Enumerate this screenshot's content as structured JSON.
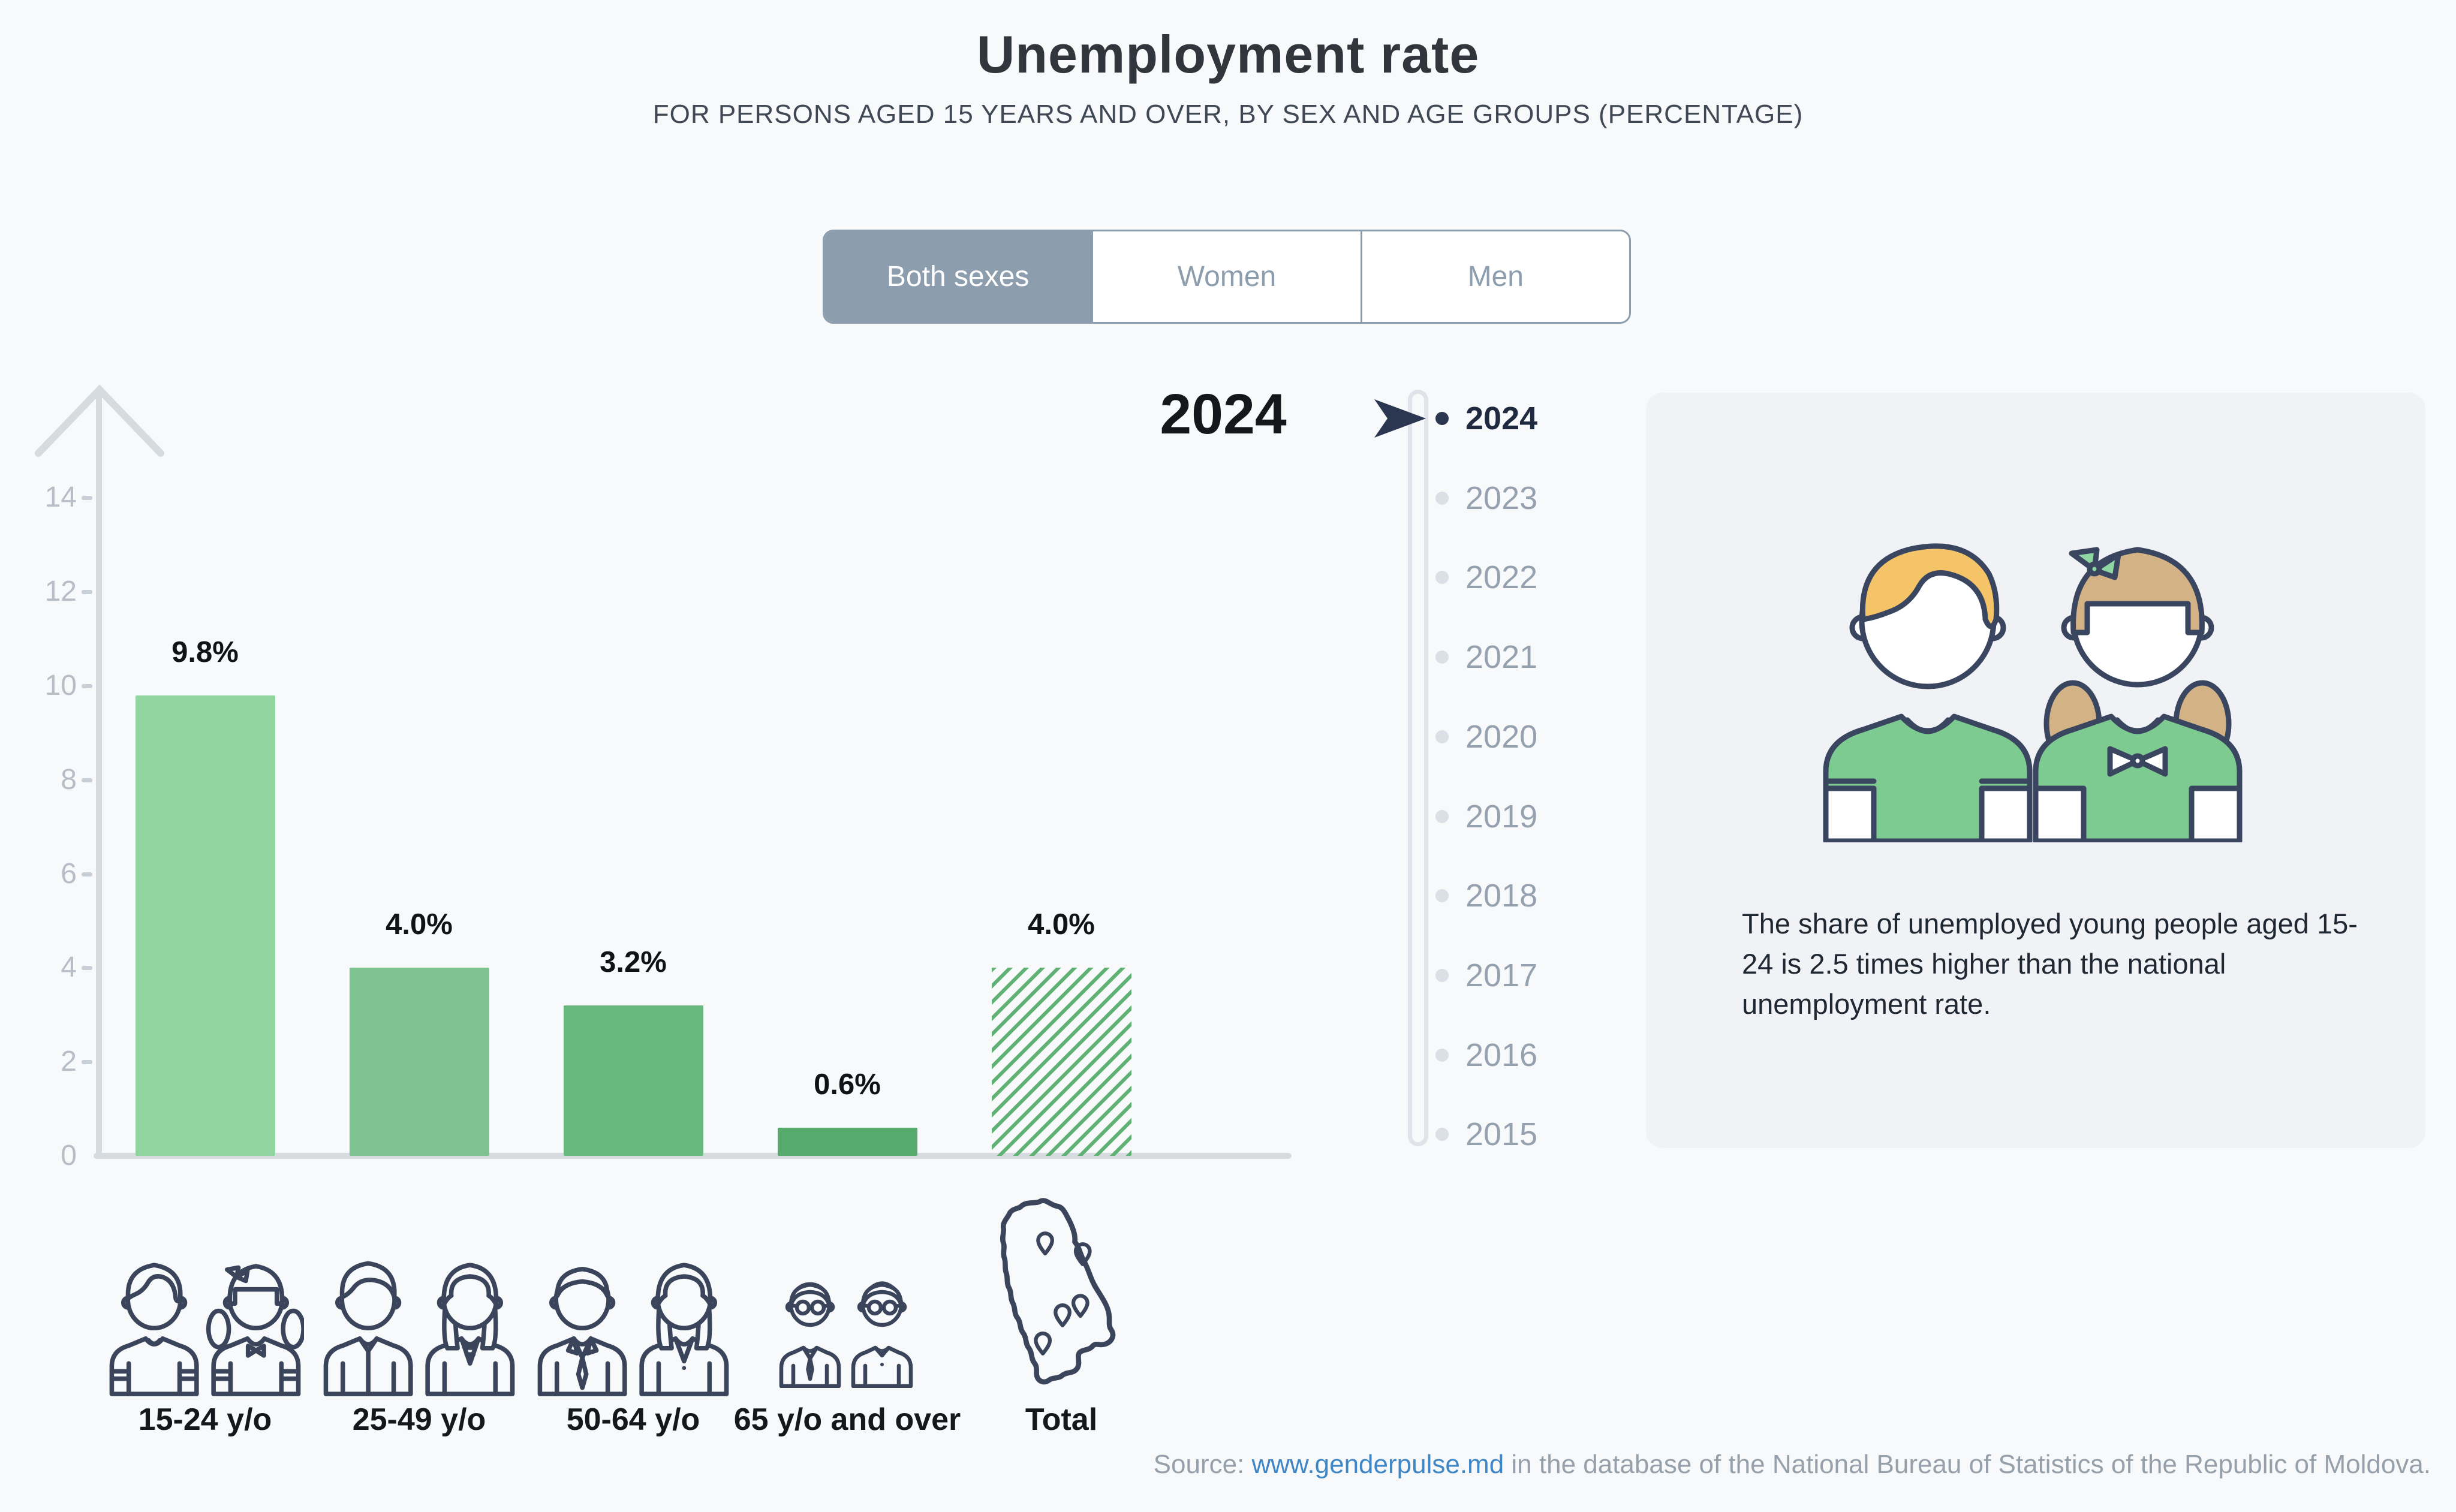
{
  "header": {
    "title": "Unemployment rate",
    "subtitle": "FOR PERSONS AGED 15 YEARS AND OVER, BY SEX AND AGE GROUPS (PERCENTAGE)"
  },
  "tabs": [
    {
      "label": "Both sexes",
      "selected": true
    },
    {
      "label": "Women",
      "selected": false
    },
    {
      "label": "Men",
      "selected": false
    }
  ],
  "chart_data": {
    "type": "bar",
    "year_label": "2024",
    "categories": [
      "15-24 y/o",
      "25-49 y/o",
      "50-64 y/o",
      "65 y/o and over",
      "Total"
    ],
    "values": [
      9.8,
      4.0,
      3.2,
      0.6,
      4.0
    ],
    "value_labels": [
      "9.8%",
      "4.0%",
      "3.2%",
      "0.6%",
      "4.0%"
    ],
    "unit": "percent",
    "ylim": [
      0,
      14
    ],
    "yticks": [
      0,
      2,
      4,
      6,
      8,
      10,
      12,
      14
    ],
    "grid": false,
    "bar_colors": [
      "#90d5a0",
      "#7dc290",
      "#69b97f",
      "#57ab6d",
      "#5fb274"
    ],
    "hatched": [
      false,
      false,
      false,
      false,
      true
    ]
  },
  "timeline": {
    "years": [
      "2024",
      "2023",
      "2022",
      "2021",
      "2020",
      "2019",
      "2018",
      "2017",
      "2016",
      "2015"
    ],
    "selected_year": "2024"
  },
  "insight": {
    "text": "The share of unemployed young people aged 15-24 is 2.5 times higher than the national unemployment rate."
  },
  "source": {
    "prefix": "Source: ",
    "link_text": "www.genderpulse.md",
    "suffix": " in the database of the National Bureau of Statistics of the Republic of Moldova."
  },
  "colors": {
    "page_bg": "#f8f9fa",
    "panel_bg": "#f0f2f5",
    "tab_gray_blue": "#8c9dad",
    "axis_gray": "#d6dbe0",
    "active_navy": "#2b3750",
    "link_blue": "#3e86c6",
    "hatch_green": "#5fb274",
    "illustration_green": "#7ecb92",
    "icon_navy": "#3a455c"
  }
}
